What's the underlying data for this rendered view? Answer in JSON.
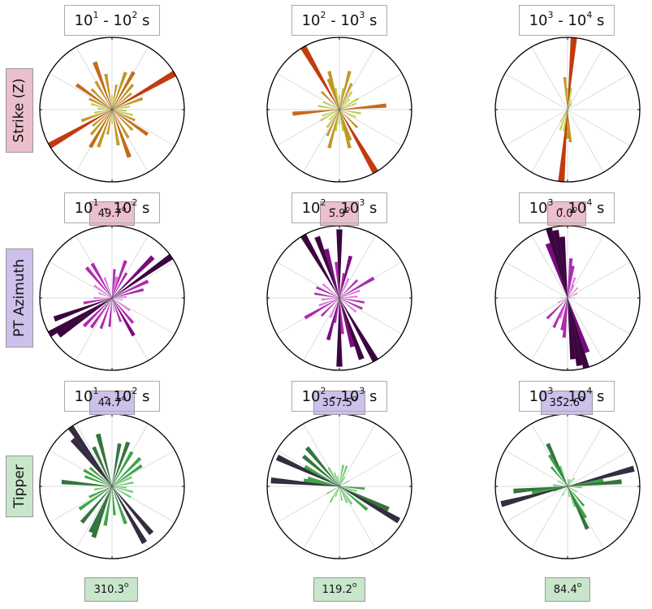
{
  "row_labels": [
    {
      "text": "Strike (Z)",
      "color": "#ebbfcb"
    },
    {
      "text": "PT Azimuth",
      "color": "#cdc0eb"
    },
    {
      "text": "Tipper",
      "color": "#c8e6c9"
    }
  ],
  "period_titles": [
    {
      "base1": "10",
      "exp1": "1",
      "sep": " - ",
      "base2": "10",
      "exp2": "2",
      "unit": " s"
    },
    {
      "base1": "10",
      "exp1": "2",
      "sep": " - ",
      "base2": "10",
      "exp2": "3",
      "unit": " s"
    },
    {
      "base1": "10",
      "exp1": "3",
      "sep": " - ",
      "base2": "10",
      "exp2": "4",
      "unit": " s"
    }
  ],
  "median_values": [
    [
      "49.7",
      "5.9",
      "0.0"
    ],
    [
      "44.7",
      "357.5",
      "352.6"
    ],
    [
      "310.3",
      "119.2",
      "84.4"
    ]
  ],
  "degree_symbol": "o",
  "colors": {
    "strike": [
      "#c8d13a",
      "#c59a1f",
      "#c66b17",
      "#c43a0e"
    ],
    "pt": [
      "#ee6cf0",
      "#b327b3",
      "#7c0a80",
      "#3b0540"
    ],
    "tipper": [
      "#5fd360",
      "#3aa744",
      "#34753e",
      "#352c40"
    ],
    "grid": "#dddddd"
  },
  "chart_data": [
    {
      "type": "rose",
      "row": "Strike (Z)",
      "period": "10^1 - 10^2 s",
      "bin_width_deg": 5,
      "bins": [
        [
          0,
          0.2
        ],
        [
          10,
          0.35
        ],
        [
          20,
          0.55
        ],
        [
          30,
          0.6
        ],
        [
          40,
          0.45
        ],
        [
          50,
          0.35
        ],
        [
          60,
          1.0
        ],
        [
          70,
          0.45
        ],
        [
          80,
          0.25
        ],
        [
          95,
          0.2
        ],
        [
          105,
          0.3
        ],
        [
          115,
          0.35
        ],
        [
          125,
          0.6
        ],
        [
          135,
          0.4
        ],
        [
          150,
          0.45
        ],
        [
          160,
          0.7
        ],
        [
          170,
          0.5
        ],
        [
          180,
          0.2
        ],
        [
          190,
          0.35
        ],
        [
          200,
          0.55
        ],
        [
          210,
          0.6
        ],
        [
          220,
          0.45
        ],
        [
          230,
          0.35
        ],
        [
          240,
          1.0
        ],
        [
          250,
          0.45
        ],
        [
          260,
          0.25
        ],
        [
          275,
          0.2
        ],
        [
          285,
          0.3
        ],
        [
          295,
          0.35
        ],
        [
          305,
          0.6
        ],
        [
          315,
          0.4
        ],
        [
          330,
          0.45
        ],
        [
          340,
          0.7
        ],
        [
          350,
          0.5
        ]
      ]
    },
    {
      "type": "rose",
      "row": "Strike (Z)",
      "period": "10^2 - 10^3 s",
      "bin_width_deg": 5,
      "bins": [
        [
          0,
          0.2
        ],
        [
          10,
          0.3
        ],
        [
          15,
          0.55
        ],
        [
          25,
          0.4
        ],
        [
          35,
          0.3
        ],
        [
          45,
          0.2
        ],
        [
          60,
          0.3
        ],
        [
          70,
          0.25
        ],
        [
          85,
          0.65
        ],
        [
          100,
          0.3
        ],
        [
          115,
          0.25
        ],
        [
          135,
          0.35
        ],
        [
          150,
          1.0
        ],
        [
          160,
          0.45
        ],
        [
          165,
          0.55
        ],
        [
          170,
          0.3
        ],
        [
          180,
          0.2
        ],
        [
          190,
          0.3
        ],
        [
          195,
          0.55
        ],
        [
          205,
          0.4
        ],
        [
          215,
          0.3
        ],
        [
          225,
          0.2
        ],
        [
          240,
          0.3
        ],
        [
          250,
          0.25
        ],
        [
          265,
          0.65
        ],
        [
          280,
          0.3
        ],
        [
          295,
          0.25
        ],
        [
          315,
          0.35
        ],
        [
          330,
          1.0
        ],
        [
          340,
          0.45
        ],
        [
          345,
          0.55
        ],
        [
          350,
          0.3
        ]
      ]
    },
    {
      "type": "rose",
      "row": "Strike (Z)",
      "period": "10^3 - 10^4 s",
      "bin_width_deg": 5,
      "bins": [
        [
          5,
          1.0
        ],
        [
          10,
          0.3
        ],
        [
          20,
          0.15
        ],
        [
          30,
          0.1
        ],
        [
          200,
          0.3
        ],
        [
          210,
          0.2
        ],
        [
          185,
          1.0
        ],
        [
          190,
          0.3
        ],
        [
          180,
          0.4
        ],
        [
          355,
          0.45
        ],
        [
          175,
          0.45
        ],
        [
          0,
          0.3
        ],
        [
          215,
          0.1
        ],
        [
          35,
          0.1
        ]
      ]
    },
    {
      "type": "rose",
      "row": "PT Azimuth",
      "period": "10^1 - 10^2 s",
      "bin_width_deg": 5,
      "bins": [
        [
          5,
          0.4
        ],
        [
          10,
          0.3
        ],
        [
          15,
          0.3
        ],
        [
          20,
          0.55
        ],
        [
          30,
          0.4
        ],
        [
          45,
          0.8
        ],
        [
          55,
          1.0
        ],
        [
          65,
          0.55
        ],
        [
          75,
          0.45
        ],
        [
          85,
          0.2
        ],
        [
          100,
          0.15
        ],
        [
          125,
          0.3
        ],
        [
          140,
          0.45
        ],
        [
          150,
          0.6
        ],
        [
          160,
          0.35
        ],
        [
          170,
          0.2
        ],
        [
          185,
          0.4
        ],
        [
          200,
          0.45
        ],
        [
          215,
          0.5
        ],
        [
          225,
          0.55
        ],
        [
          235,
          0.9
        ],
        [
          240,
          1.0
        ],
        [
          250,
          0.85
        ],
        [
          260,
          0.4
        ],
        [
          270,
          0.25
        ],
        [
          290,
          0.2
        ],
        [
          305,
          0.3
        ],
        [
          320,
          0.55
        ],
        [
          330,
          0.55
        ],
        [
          340,
          0.3
        ]
      ]
    },
    {
      "type": "rose",
      "row": "PT Azimuth",
      "period": "10^2 - 10^3 s",
      "bin_width_deg": 5,
      "bins": [
        [
          0,
          0.95
        ],
        [
          10,
          0.35
        ],
        [
          15,
          0.6
        ],
        [
          25,
          0.3
        ],
        [
          45,
          0.35
        ],
        [
          60,
          0.55
        ],
        [
          70,
          0.3
        ],
        [
          85,
          0.25
        ],
        [
          100,
          0.35
        ],
        [
          115,
          0.35
        ],
        [
          130,
          0.3
        ],
        [
          150,
          1.0
        ],
        [
          160,
          0.9
        ],
        [
          165,
          0.7
        ],
        [
          175,
          0.5
        ],
        [
          180,
          0.95
        ],
        [
          190,
          0.35
        ],
        [
          195,
          0.6
        ],
        [
          205,
          0.3
        ],
        [
          225,
          0.35
        ],
        [
          240,
          0.55
        ],
        [
          250,
          0.3
        ],
        [
          265,
          0.25
        ],
        [
          280,
          0.35
        ],
        [
          295,
          0.35
        ],
        [
          310,
          0.3
        ],
        [
          330,
          1.0
        ],
        [
          340,
          0.9
        ],
        [
          345,
          0.7
        ],
        [
          355,
          0.5
        ]
      ]
    },
    {
      "type": "rose",
      "row": "PT Azimuth",
      "period": "10^3 - 10^4 s",
      "bin_width_deg": 5,
      "bins": [
        [
          345,
          1.0
        ],
        [
          350,
          0.95
        ],
        [
          355,
          0.85
        ],
        [
          5,
          0.55
        ],
        [
          10,
          0.45
        ],
        [
          25,
          0.2
        ],
        [
          45,
          0.2
        ],
        [
          65,
          0.15
        ],
        [
          90,
          0.1
        ],
        [
          165,
          1.0
        ],
        [
          170,
          0.95
        ],
        [
          175,
          0.85
        ],
        [
          185,
          0.55
        ],
        [
          190,
          0.45
        ],
        [
          205,
          0.45
        ],
        [
          225,
          0.4
        ],
        [
          245,
          0.15
        ],
        [
          270,
          0.1
        ],
        [
          160,
          0.8
        ],
        [
          340,
          0.8
        ],
        [
          200,
          0.3
        ],
        [
          20,
          0.3
        ]
      ]
    },
    {
      "type": "rose",
      "row": "Tipper",
      "period": "10^1 - 10^2 s",
      "bin_width_deg": 5,
      "bins": [
        [
          10,
          0.6
        ],
        [
          20,
          0.65
        ],
        [
          30,
          0.55
        ],
        [
          45,
          0.55
        ],
        [
          55,
          0.5
        ],
        [
          65,
          0.3
        ],
        [
          80,
          0.3
        ],
        [
          95,
          0.2
        ],
        [
          105,
          0.3
        ],
        [
          120,
          0.3
        ],
        [
          140,
          0.85
        ],
        [
          150,
          0.9
        ],
        [
          160,
          0.55
        ],
        [
          175,
          0.4
        ],
        [
          190,
          0.55
        ],
        [
          200,
          0.75
        ],
        [
          205,
          0.7
        ],
        [
          220,
          0.65
        ],
        [
          235,
          0.55
        ],
        [
          245,
          0.35
        ],
        [
          260,
          0.25
        ],
        [
          275,
          0.7
        ],
        [
          290,
          0.4
        ],
        [
          300,
          0.45
        ],
        [
          310,
          0.4
        ],
        [
          320,
          0.85
        ],
        [
          325,
          1.0
        ],
        [
          335,
          0.6
        ],
        [
          345,
          0.75
        ]
      ]
    },
    {
      "type": "rose",
      "row": "Tipper",
      "period": "10^2 - 10^3 s",
      "bin_width_deg": 5,
      "bins": [
        [
          10,
          0.3
        ],
        [
          20,
          0.3
        ],
        [
          30,
          0.15
        ],
        [
          60,
          0.15
        ],
        [
          95,
          0.35
        ],
        [
          105,
          0.25
        ],
        [
          115,
          0.75
        ],
        [
          120,
          0.95
        ],
        [
          130,
          0.5
        ],
        [
          145,
          0.3
        ],
        [
          155,
          0.25
        ],
        [
          170,
          0.2
        ],
        [
          200,
          0.15
        ],
        [
          210,
          0.25
        ],
        [
          240,
          0.2
        ],
        [
          275,
          0.95
        ],
        [
          280,
          0.5
        ],
        [
          285,
          0.45
        ],
        [
          295,
          0.95
        ],
        [
          300,
          0.55
        ],
        [
          310,
          0.65
        ],
        [
          320,
          0.7
        ],
        [
          330,
          0.3
        ],
        [
          340,
          0.2
        ],
        [
          350,
          0.15
        ]
      ]
    },
    {
      "type": "rose",
      "row": "Tipper",
      "period": "10^3 - 10^4 s",
      "bin_width_deg": 5,
      "bins": [
        [
          5,
          0.1
        ],
        [
          15,
          0.1
        ],
        [
          25,
          0.1
        ],
        [
          40,
          0.15
        ],
        [
          75,
          0.95
        ],
        [
          80,
          0.5
        ],
        [
          85,
          0.75
        ],
        [
          95,
          0.2
        ],
        [
          120,
          0.15
        ],
        [
          140,
          0.35
        ],
        [
          150,
          0.5
        ],
        [
          155,
          0.65
        ],
        [
          160,
          0.3
        ],
        [
          170,
          0.15
        ],
        [
          210,
          0.15
        ],
        [
          250,
          0.2
        ],
        [
          255,
          0.95
        ],
        [
          260,
          0.5
        ],
        [
          265,
          0.75
        ],
        [
          275,
          0.2
        ],
        [
          300,
          0.15
        ],
        [
          320,
          0.35
        ],
        [
          330,
          0.5
        ],
        [
          335,
          0.65
        ],
        [
          340,
          0.3
        ]
      ]
    }
  ]
}
